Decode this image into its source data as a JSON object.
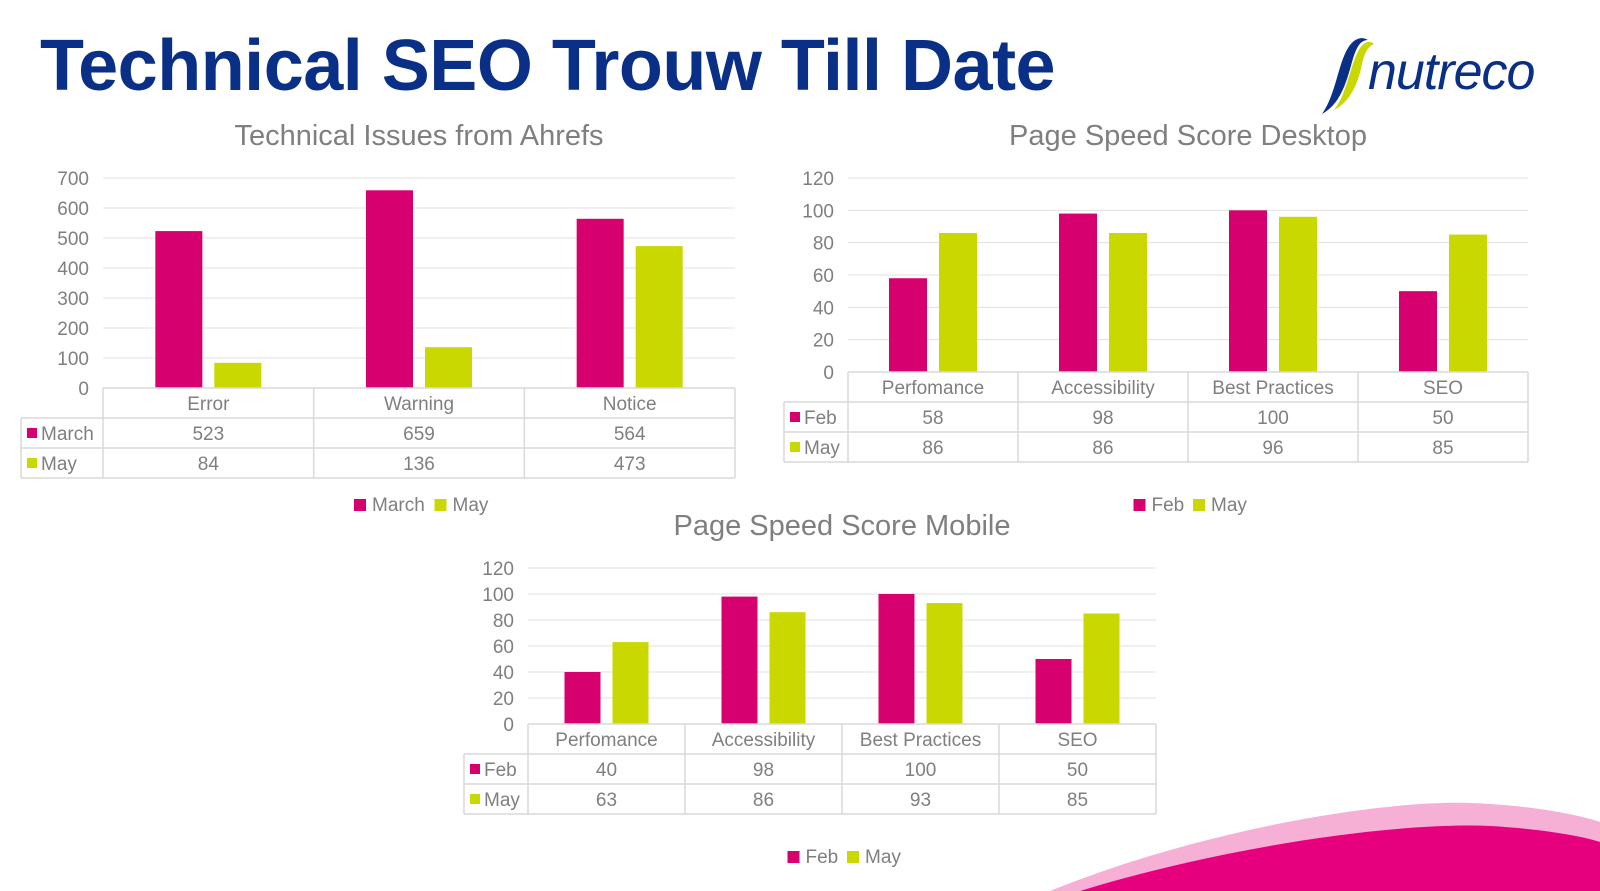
{
  "title": "Technical SEO Trouw Till Date",
  "logo": {
    "text": "nutreco"
  },
  "colors": {
    "series1": "#d6006e",
    "series2": "#c8d800",
    "title": "#0a2f87",
    "wave": "#e6007e"
  },
  "chart_data": [
    {
      "type": "bar",
      "title": "Technical Issues from Ahrefs",
      "categories": [
        "Error",
        "Warning",
        "Notice"
      ],
      "series": [
        {
          "name": "March",
          "values": [
            523,
            659,
            564
          ]
        },
        {
          "name": "May",
          "values": [
            84,
            136,
            473
          ]
        }
      ],
      "yticks": [
        "0",
        "100",
        "200",
        "300",
        "400",
        "500",
        "600",
        "700"
      ],
      "ylim": [
        0,
        700
      ],
      "grid": true,
      "legend": "bottom",
      "data_table": true
    },
    {
      "type": "bar",
      "title": "Page Speed Score Desktop",
      "categories": [
        "Perfomance",
        "Accessibility",
        "Best Practices",
        "SEO"
      ],
      "series": [
        {
          "name": "Feb",
          "values": [
            58,
            98,
            100,
            50
          ]
        },
        {
          "name": "May",
          "values": [
            86,
            86,
            96,
            85
          ]
        }
      ],
      "yticks": [
        "0",
        "20",
        "40",
        "60",
        "80",
        "100",
        "120"
      ],
      "ylim": [
        0,
        120
      ],
      "grid": true,
      "legend": "bottom",
      "data_table": true
    },
    {
      "type": "bar",
      "title": "Page Speed Score Mobile",
      "categories": [
        "Perfomance",
        "Accessibility",
        "Best Practices",
        "SEO"
      ],
      "series": [
        {
          "name": "Feb",
          "values": [
            40,
            98,
            100,
            50
          ]
        },
        {
          "name": "May",
          "values": [
            63,
            86,
            93,
            85
          ]
        }
      ],
      "yticks": [
        "0",
        "20",
        "40",
        "60",
        "80",
        "100",
        "120"
      ],
      "ylim": [
        0,
        120
      ],
      "grid": true,
      "legend": "bottom",
      "data_table": true
    }
  ]
}
